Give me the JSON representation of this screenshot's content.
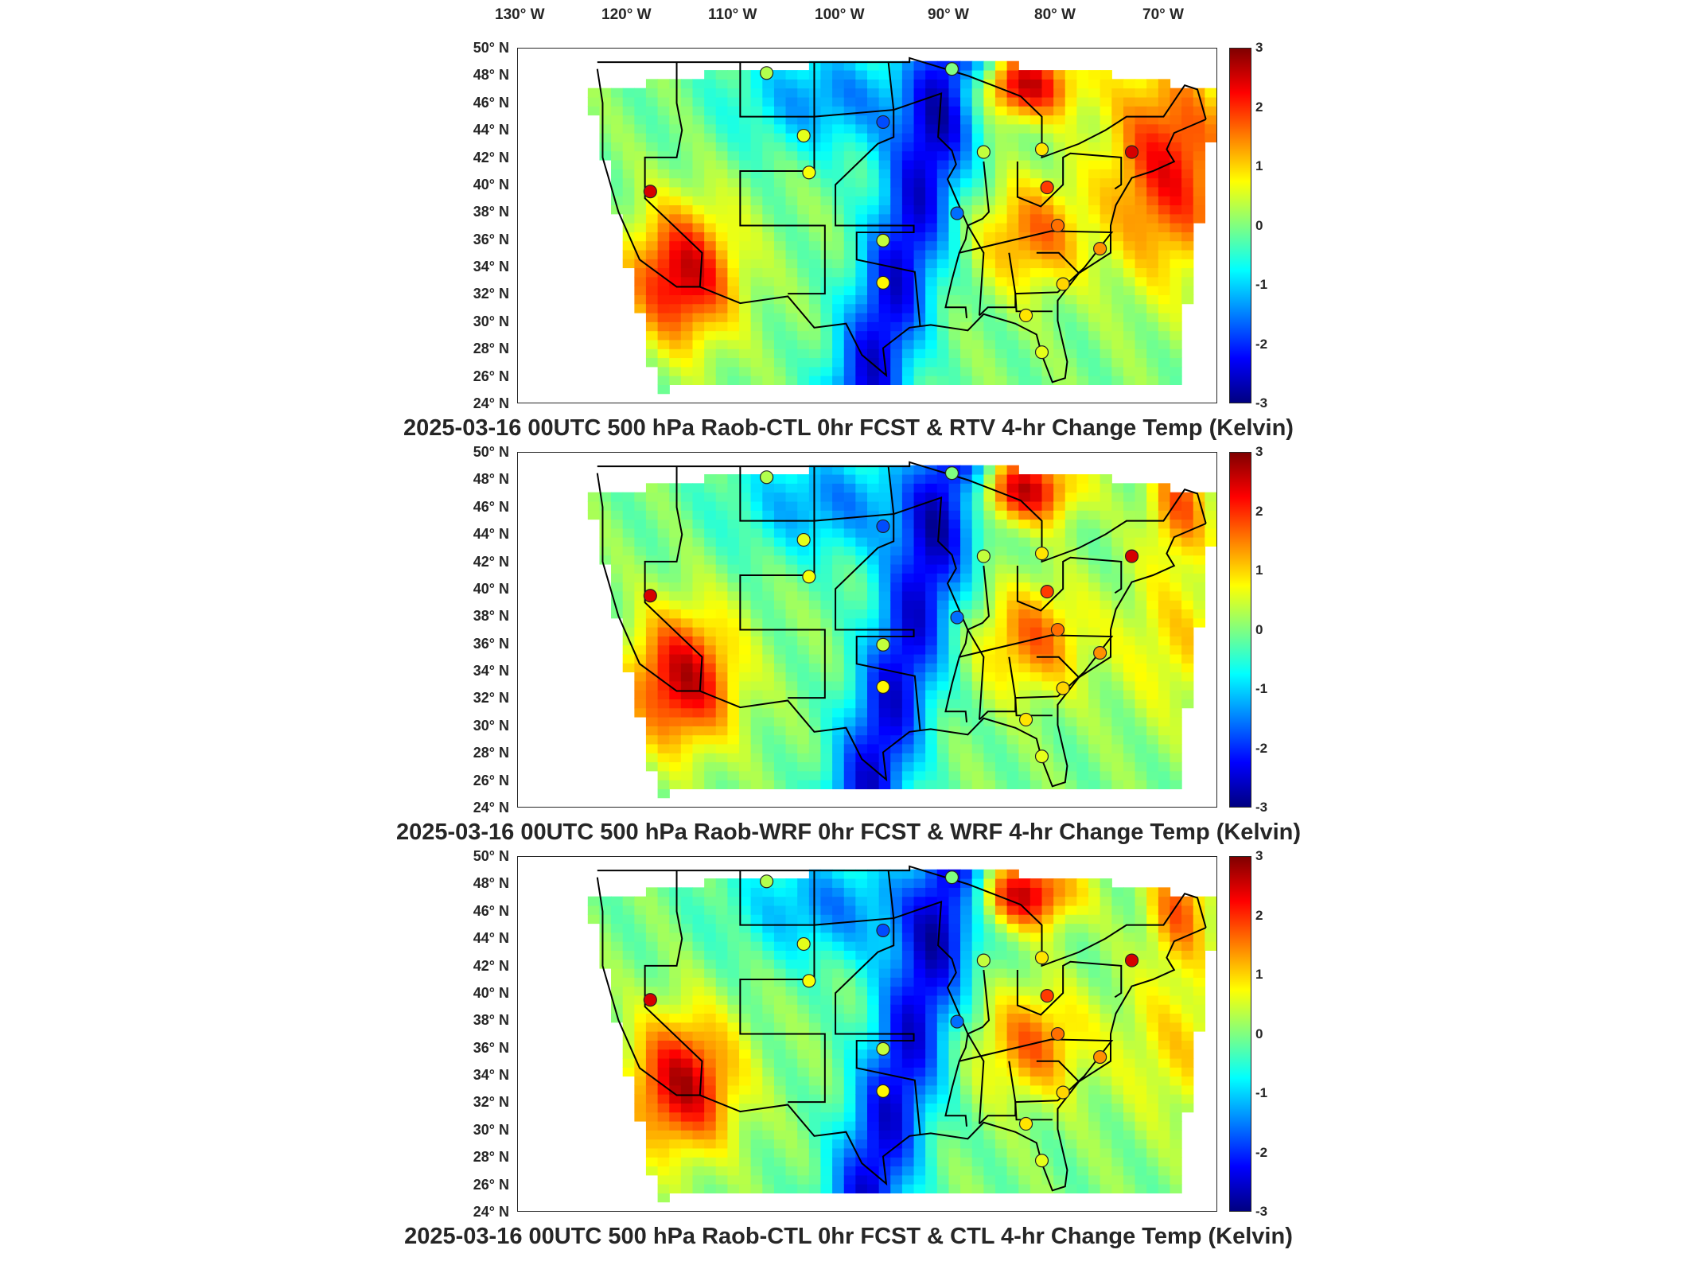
{
  "longitude_labels": [
    "130° W",
    "120° W",
    "110° W",
    "100° W",
    "90° W",
    "80° W",
    "70° W"
  ],
  "latitude_labels": [
    "50° N",
    "48° N",
    "46° N",
    "44° N",
    "42° N",
    "40° N",
    "38° N",
    "36° N",
    "34° N",
    "32° N",
    "30° N",
    "28° N",
    "26° N",
    "24° N"
  ],
  "colorbar_ticks": [
    "3",
    "2",
    "1",
    "0",
    "-1",
    "-2",
    "-3"
  ],
  "panels": [
    {
      "title": "2025-03-16 00UTC 500 hPa Raob-CTL 0hr FCST & RTV 4-hr Change Temp (Kelvin)"
    },
    {
      "title": "2025-03-16 00UTC 500 hPa Raob-WRF 0hr FCST & WRF 4-hr Change Temp (Kelvin)"
    },
    {
      "title": "2025-03-16 00UTC 500 hPa Raob-CTL 0hr FCST & CTL 4-hr Change Temp (Kelvin)"
    }
  ],
  "chart_data": [
    {
      "type": "heatmap",
      "title": "2025-03-16 00UTC 500 hPa Raob-CTL 0hr FCST & RTV 4-hr Change Temp (Kelvin)",
      "x_ticks": [
        "130° W",
        "120° W",
        "110° W",
        "100° W",
        "90° W",
        "80° W",
        "70° W"
      ],
      "y_ticks": [
        "50° N",
        "48° N",
        "46° N",
        "44° N",
        "42° N",
        "40° N",
        "38° N",
        "36° N",
        "34° N",
        "32° N",
        "30° N",
        "28° N",
        "26° N",
        "24° N"
      ],
      "xlim": [
        -132,
        -66
      ],
      "ylim": [
        24,
        50
      ],
      "colorbar_range": [
        -3,
        3
      ],
      "colormap": "jet",
      "raob_stations": [
        {
          "lon": -108.5,
          "lat": 48.2,
          "value": 0.3
        },
        {
          "lon": -91.0,
          "lat": 48.5,
          "value": 0.0
        },
        {
          "lon": -105.0,
          "lat": 43.6,
          "value": 0.6
        },
        {
          "lon": -97.5,
          "lat": 44.6,
          "value": -1.8
        },
        {
          "lon": -104.5,
          "lat": 40.9,
          "value": 0.7
        },
        {
          "lon": -88.0,
          "lat": 42.4,
          "value": 0.4
        },
        {
          "lon": -82.5,
          "lat": 42.6,
          "value": 0.9
        },
        {
          "lon": -74.0,
          "lat": 42.4,
          "value": 2.5
        },
        {
          "lon": -82.0,
          "lat": 39.8,
          "value": 1.9
        },
        {
          "lon": -119.5,
          "lat": 39.5,
          "value": 2.5
        },
        {
          "lon": -90.5,
          "lat": 37.9,
          "value": -1.6
        },
        {
          "lon": -81.0,
          "lat": 37.0,
          "value": 1.6
        },
        {
          "lon": -97.5,
          "lat": 35.9,
          "value": 0.4
        },
        {
          "lon": -77.0,
          "lat": 35.3,
          "value": 1.4
        },
        {
          "lon": -80.5,
          "lat": 32.7,
          "value": 1.0
        },
        {
          "lon": -97.5,
          "lat": 32.8,
          "value": 0.8
        },
        {
          "lon": -84.0,
          "lat": 30.4,
          "value": 0.9
        },
        {
          "lon": -82.5,
          "lat": 27.7,
          "value": 0.6
        }
      ]
    },
    {
      "type": "heatmap",
      "title": "2025-03-16 00UTC 500 hPa Raob-WRF 0hr FCST & WRF 4-hr Change Temp (Kelvin)",
      "x_ticks": [
        "130° W",
        "120° W",
        "110° W",
        "100° W",
        "90° W",
        "80° W",
        "70° W"
      ],
      "y_ticks": [
        "50° N",
        "48° N",
        "46° N",
        "44° N",
        "42° N",
        "40° N",
        "38° N",
        "36° N",
        "34° N",
        "32° N",
        "30° N",
        "28° N",
        "26° N",
        "24° N"
      ],
      "xlim": [
        -132,
        -66
      ],
      "ylim": [
        24,
        50
      ],
      "colorbar_range": [
        -3,
        3
      ],
      "colormap": "jet",
      "raob_stations": [
        {
          "lon": -108.5,
          "lat": 48.2,
          "value": 0.3
        },
        {
          "lon": -91.0,
          "lat": 48.5,
          "value": 0.0
        },
        {
          "lon": -105.0,
          "lat": 43.6,
          "value": 0.6
        },
        {
          "lon": -97.5,
          "lat": 44.6,
          "value": -1.8
        },
        {
          "lon": -104.5,
          "lat": 40.9,
          "value": 0.7
        },
        {
          "lon": -88.0,
          "lat": 42.4,
          "value": 0.4
        },
        {
          "lon": -82.5,
          "lat": 42.6,
          "value": 0.9
        },
        {
          "lon": -74.0,
          "lat": 42.4,
          "value": 2.5
        },
        {
          "lon": -82.0,
          "lat": 39.8,
          "value": 1.9
        },
        {
          "lon": -119.5,
          "lat": 39.5,
          "value": 2.5
        },
        {
          "lon": -90.5,
          "lat": 37.9,
          "value": -1.6
        },
        {
          "lon": -81.0,
          "lat": 37.0,
          "value": 1.6
        },
        {
          "lon": -97.5,
          "lat": 35.9,
          "value": 0.4
        },
        {
          "lon": -77.0,
          "lat": 35.3,
          "value": 1.4
        },
        {
          "lon": -80.5,
          "lat": 32.7,
          "value": 1.0
        },
        {
          "lon": -97.5,
          "lat": 32.8,
          "value": 0.8
        },
        {
          "lon": -84.0,
          "lat": 30.4,
          "value": 0.9
        },
        {
          "lon": -82.5,
          "lat": 27.7,
          "value": 0.6
        }
      ]
    },
    {
      "type": "heatmap",
      "title": "2025-03-16 00UTC 500 hPa Raob-CTL 0hr FCST & CTL 4-hr Change Temp (Kelvin)",
      "x_ticks": [
        "130° W",
        "120° W",
        "110° W",
        "100° W",
        "90° W",
        "80° W",
        "70° W"
      ],
      "y_ticks": [
        "50° N",
        "48° N",
        "46° N",
        "44° N",
        "42° N",
        "40° N",
        "38° N",
        "36° N",
        "34° N",
        "32° N",
        "30° N",
        "28° N",
        "26° N",
        "24° N"
      ],
      "xlim": [
        -132,
        -66
      ],
      "ylim": [
        24,
        50
      ],
      "colorbar_range": [
        -3,
        3
      ],
      "colormap": "jet",
      "raob_stations": [
        {
          "lon": -108.5,
          "lat": 48.2,
          "value": 0.3
        },
        {
          "lon": -91.0,
          "lat": 48.5,
          "value": 0.0
        },
        {
          "lon": -105.0,
          "lat": 43.6,
          "value": 0.6
        },
        {
          "lon": -97.5,
          "lat": 44.6,
          "value": -1.8
        },
        {
          "lon": -104.5,
          "lat": 40.9,
          "value": 0.7
        },
        {
          "lon": -88.0,
          "lat": 42.4,
          "value": 0.4
        },
        {
          "lon": -82.5,
          "lat": 42.6,
          "value": 0.9
        },
        {
          "lon": -74.0,
          "lat": 42.4,
          "value": 2.5
        },
        {
          "lon": -82.0,
          "lat": 39.8,
          "value": 1.9
        },
        {
          "lon": -119.5,
          "lat": 39.5,
          "value": 2.5
        },
        {
          "lon": -90.5,
          "lat": 37.9,
          "value": -1.6
        },
        {
          "lon": -81.0,
          "lat": 37.0,
          "value": 1.6
        },
        {
          "lon": -97.5,
          "lat": 35.9,
          "value": 0.4
        },
        {
          "lon": -77.0,
          "lat": 35.3,
          "value": 1.4
        },
        {
          "lon": -80.5,
          "lat": 32.7,
          "value": 1.0
        },
        {
          "lon": -97.5,
          "lat": 32.8,
          "value": 0.8
        },
        {
          "lon": -84.0,
          "lat": 30.4,
          "value": 0.9
        },
        {
          "lon": -82.5,
          "lat": 27.7,
          "value": 0.6
        }
      ]
    }
  ]
}
